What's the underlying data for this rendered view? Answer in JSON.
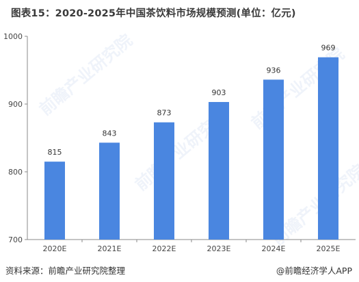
{
  "title": "图表15：2020-2025年中国茶饮料市场规模预测(单位：亿元)",
  "footer": {
    "source": "资料来源：前瞻产业研究院整理",
    "brand": "@前瞻经济学人APP"
  },
  "watermark": "前瞻产业研究院",
  "colors": {
    "bar": "#4a86e0",
    "axis": "#888888"
  },
  "chart_data": {
    "type": "bar",
    "title": "图表15：2020-2025年中国茶饮料市场规模预测(单位：亿元)",
    "categories": [
      "2020E",
      "2021E",
      "2022E",
      "2023E",
      "2024E",
      "2025E"
    ],
    "values": [
      815,
      843,
      873,
      903,
      936,
      969
    ],
    "xlabel": "",
    "ylabel": "",
    "ylim": [
      700,
      1000
    ],
    "yticks": [
      700,
      800,
      900,
      1000
    ],
    "grid": false,
    "legend": "none"
  }
}
